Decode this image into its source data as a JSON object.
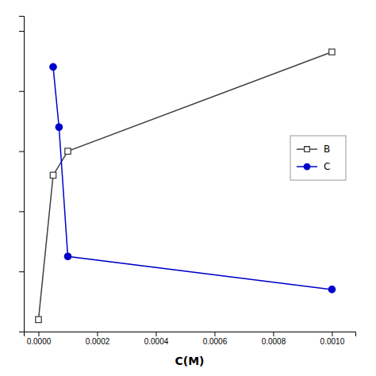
{
  "chart_data": {
    "type": "line",
    "x_label": "C(M)",
    "series": [
      {
        "name": "B",
        "color": "#404040",
        "marker": "open-square",
        "x": [
          0.0,
          5e-05,
          0.0001,
          0.001
        ],
        "values": [
          0.04,
          0.52,
          0.6,
          0.93
        ]
      },
      {
        "name": "C",
        "color": "#0000cc",
        "marker": "circle",
        "x": [
          5e-05,
          7e-05,
          0.0001,
          0.001
        ],
        "values": [
          0.88,
          0.68,
          0.25,
          0.14
        ]
      }
    ],
    "xlim": [
      -5e-05,
      0.00108
    ],
    "xticks": [
      {
        "value": 0.0,
        "label": "0.0000"
      },
      {
        "value": 0.0002,
        "label": "0.0002"
      },
      {
        "value": 0.0004,
        "label": "0.0004"
      },
      {
        "value": 0.0006,
        "label": "0.0006"
      },
      {
        "value": 0.0008,
        "label": "0.0008"
      },
      {
        "value": 0.001,
        "label": "0.0010"
      }
    ],
    "ylim": [
      0.0,
      1.05
    ],
    "yticks": [
      0.0,
      0.2,
      0.4,
      0.6,
      0.8,
      1.0
    ],
    "tick_labels": "x",
    "grid": false,
    "legend": "right"
  }
}
